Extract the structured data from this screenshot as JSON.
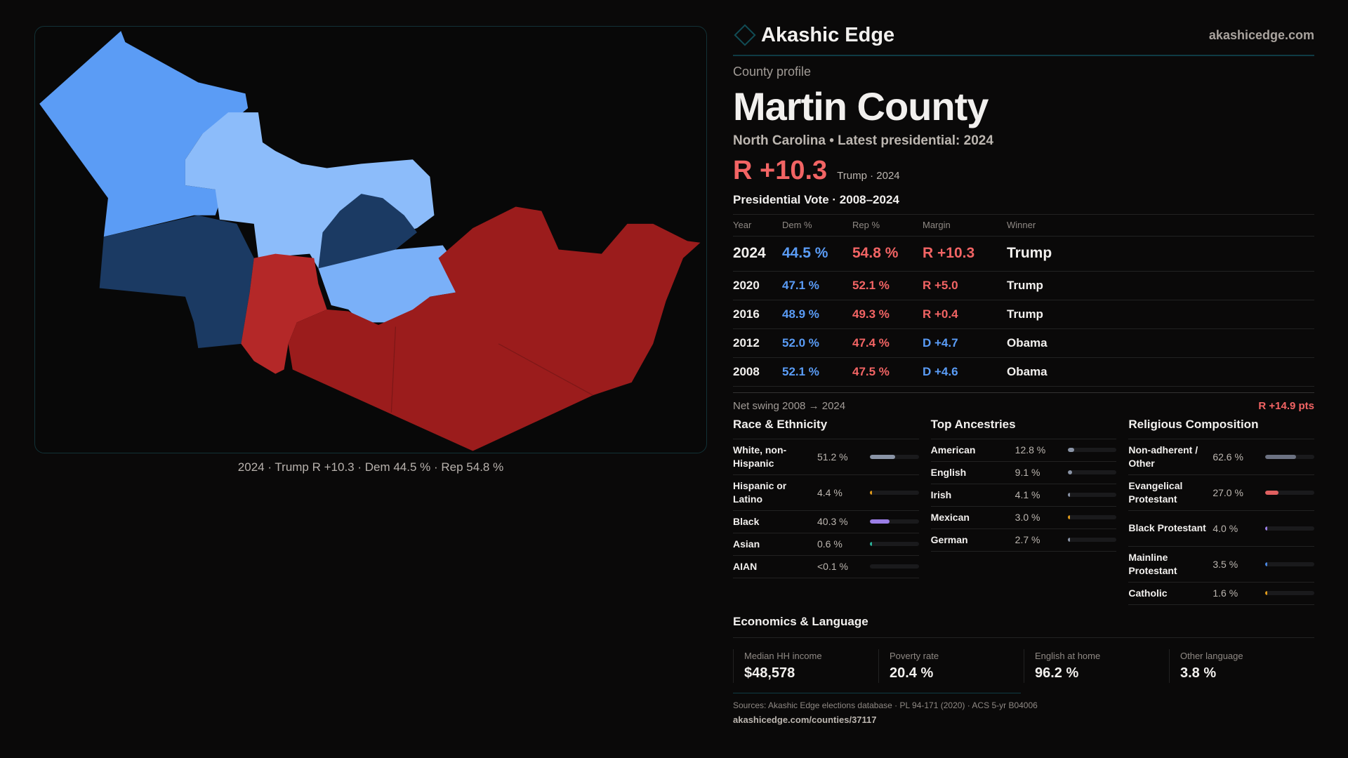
{
  "brand": {
    "name": "Akashic Edge",
    "site": "akashicedge.com"
  },
  "profile": {
    "kicker": "County profile",
    "title": "Martin County",
    "subtitle": "North Carolina • Latest presidential: 2024",
    "margin": "R +10.3",
    "margin_note": "Trump · 2024"
  },
  "map": {
    "caption": "2024 · Trump R +10.3 · Dem 44.5 % · Rep 54.8 %",
    "colors": {
      "dem_strong": "#1b3a63",
      "dem_light": "#8cbcfa",
      "dem_mid": "#5b9cf5",
      "rep": "#9b1c1c",
      "rep_light": "#b42828"
    }
  },
  "votes": {
    "title": "Presidential Vote · 2008–2024",
    "headers": [
      "Year",
      "Dem %",
      "Rep %",
      "Margin",
      "Winner"
    ],
    "rows": [
      {
        "year": "2024",
        "dem": "44.5 %",
        "rep": "54.8 %",
        "margin": "R +10.3",
        "winner": "Trump",
        "party": "rep"
      },
      {
        "year": "2020",
        "dem": "47.1 %",
        "rep": "52.1 %",
        "margin": "R +5.0",
        "winner": "Trump",
        "party": "rep"
      },
      {
        "year": "2016",
        "dem": "48.9 %",
        "rep": "49.3 %",
        "margin": "R +0.4",
        "winner": "Trump",
        "party": "rep"
      },
      {
        "year": "2012",
        "dem": "52.0 %",
        "rep": "47.4 %",
        "margin": "D +4.7",
        "winner": "Obama",
        "party": "dem"
      },
      {
        "year": "2008",
        "dem": "52.1 %",
        "rep": "47.5 %",
        "margin": "D +4.6",
        "winner": "Obama",
        "party": "dem"
      }
    ],
    "swing_label": "Net swing 2008 → 2024",
    "swing_value": "R +14.9 pts"
  },
  "race": {
    "title": "Race & Ethnicity",
    "items": [
      {
        "label": "White, non-Hispanic",
        "pct": "51.2 %",
        "value": 51.2,
        "color": "#8a94a6"
      },
      {
        "label": "Hispanic or Latino",
        "pct": "4.4 %",
        "value": 4.4,
        "color": "#e09a1a"
      },
      {
        "label": "Black",
        "pct": "40.3 %",
        "value": 40.3,
        "color": "#9b7ee6"
      },
      {
        "label": "Asian",
        "pct": "0.6 %",
        "value": 0.6,
        "color": "#2bb39a"
      },
      {
        "label": "AIAN",
        "pct": "<0.1 %",
        "value": 0.05,
        "color": "#c04040"
      }
    ]
  },
  "ancestry": {
    "title": "Top Ancestries",
    "items": [
      {
        "label": "American",
        "pct": "12.8 %",
        "value": 12.8,
        "color": "#8a94a6"
      },
      {
        "label": "English",
        "pct": "9.1 %",
        "value": 9.1,
        "color": "#8a94a6"
      },
      {
        "label": "Irish",
        "pct": "4.1 %",
        "value": 4.1,
        "color": "#8a94a6"
      },
      {
        "label": "Mexican",
        "pct": "3.0 %",
        "value": 3.0,
        "color": "#e09a1a"
      },
      {
        "label": "German",
        "pct": "2.7 %",
        "value": 2.7,
        "color": "#8a94a6"
      }
    ]
  },
  "religion": {
    "title": "Religious Composition",
    "items": [
      {
        "label": "Non-adherent / Other",
        "pct": "62.6 %",
        "value": 62.6,
        "color": "#6c7282"
      },
      {
        "label": "Evangelical Protestant",
        "pct": "27.0 %",
        "value": 27.0,
        "color": "#e06060"
      },
      {
        "label": "Black Protestant",
        "pct": "4.0 %",
        "value": 4.0,
        "color": "#9b7ee6"
      },
      {
        "label": "Mainline Protestant",
        "pct": "3.5 %",
        "value": 3.5,
        "color": "#4a86e0"
      },
      {
        "label": "Catholic",
        "pct": "1.6 %",
        "value": 1.6,
        "color": "#e09a1a"
      }
    ]
  },
  "economics": {
    "title": "Economics & Language",
    "cards": [
      {
        "label": "Median HH income",
        "value": "$48,578"
      },
      {
        "label": "Poverty rate",
        "value": "20.4 %"
      },
      {
        "label": "English at home",
        "value": "96.2 %"
      },
      {
        "label": "Other language",
        "value": "3.8 %"
      }
    ]
  },
  "footer": {
    "sources": "Sources: Akashic Edge elections database · PL 94-171 (2020) · ACS 5-yr B04006",
    "url": "akashicedge.com/counties/37117"
  }
}
